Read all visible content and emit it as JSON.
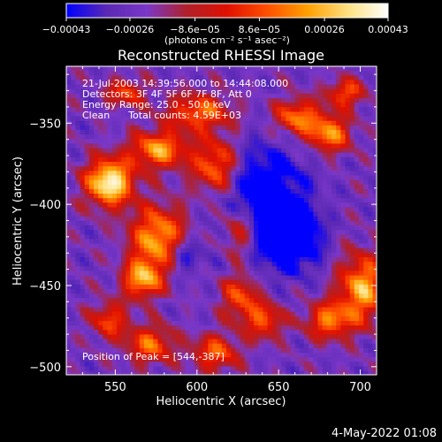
{
  "chart_data": {
    "type": "heatmap",
    "title": "Reconstructed RHESSI Image",
    "xlabel": "Heliocentric X (arcsec)",
    "ylabel": "Heliocentric Y (arcsec)",
    "xlim": [
      520,
      710
    ],
    "ylim": [
      -505,
      -315
    ],
    "x_ticks": [
      550,
      600,
      650,
      700
    ],
    "x_tick_labels": [
      "550",
      "600",
      "650",
      "700"
    ],
    "y_ticks": [
      -350,
      -400,
      -450,
      -500
    ],
    "y_tick_labels": [
      "−350",
      "−400",
      "−450",
      "−500"
    ],
    "colorbar": {
      "range": [
        -0.00043,
        0.00043
      ],
      "ticks": [
        -0.00043,
        -0.00026,
        -8.6e-05,
        8.6e-05,
        0.00026,
        0.00043
      ],
      "tick_labels": [
        "−0.00043",
        "−0.00026",
        "−8.6e−05",
        "8.6e−05",
        "0.00026",
        "0.00043"
      ],
      "unit_label": "(photons cm⁻² s⁻¹ asec⁻²)",
      "colormap": [
        "#0000ff",
        "#5a28b4",
        "#7a37c8",
        "#b0202a",
        "#e01000",
        "#ff5000",
        "#ffa000",
        "#ffe080",
        "#ffffff"
      ]
    },
    "annotations": [
      "21-Jul-2003 14:39:56.000 to 14:44:08.000",
      "Detectors: 3F 4F 5F 6F 7F 8F, Att 0",
      "Energy Range: 25.0 - 50.0 keV",
      "Clean      Total counts: 4.59E+03"
    ],
    "peak_label": "Position of Peak = [544,-387]",
    "peak": {
      "x": 544,
      "y": -387
    },
    "sources": [
      {
        "x": 545,
        "y": -385,
        "sx": 10,
        "sy": 10,
        "amp": 1.15
      },
      {
        "x": 575,
        "y": -365,
        "sx": 12,
        "sy": 8,
        "amp": 0.8
      },
      {
        "x": 575,
        "y": -420,
        "sx": 12,
        "sy": 14,
        "amp": 0.85
      },
      {
        "x": 565,
        "y": -445,
        "sx": 8,
        "sy": 8,
        "amp": 0.8
      },
      {
        "x": 610,
        "y": -375,
        "sx": 10,
        "sy": 12,
        "amp": 0.7
      },
      {
        "x": 600,
        "y": -342,
        "sx": 14,
        "sy": 8,
        "amp": 0.65
      },
      {
        "x": 625,
        "y": -415,
        "sx": 8,
        "sy": 12,
        "amp": 0.6
      },
      {
        "x": 660,
        "y": -345,
        "sx": 10,
        "sy": 8,
        "amp": 0.7
      },
      {
        "x": 680,
        "y": -355,
        "sx": 9,
        "sy": 8,
        "amp": 0.75
      },
      {
        "x": 690,
        "y": -330,
        "sx": 8,
        "sy": 6,
        "amp": 0.6
      },
      {
        "x": 700,
        "y": -450,
        "sx": 10,
        "sy": 14,
        "amp": 0.85
      },
      {
        "x": 680,
        "y": -470,
        "sx": 10,
        "sy": 8,
        "amp": 0.7
      },
      {
        "x": 640,
        "y": -470,
        "sx": 8,
        "sy": 8,
        "amp": 0.6
      },
      {
        "x": 570,
        "y": -485,
        "sx": 10,
        "sy": 8,
        "amp": 0.65
      },
      {
        "x": 610,
        "y": -490,
        "sx": 10,
        "sy": 8,
        "amp": 0.6
      },
      {
        "x": 545,
        "y": -470,
        "sx": 8,
        "sy": 8,
        "amp": 0.55
      },
      {
        "x": 625,
        "y": -455,
        "sx": 8,
        "sy": 10,
        "amp": 0.6
      },
      {
        "x": 555,
        "y": -330,
        "sx": 8,
        "sy": 6,
        "amp": 0.55
      }
    ],
    "negative_regions": [
      {
        "x": 640,
        "y": -400,
        "sx": 18,
        "sy": 25,
        "amp": 0.6
      },
      {
        "x": 660,
        "y": -420,
        "sx": 10,
        "sy": 12,
        "amp": 0.5
      },
      {
        "x": 590,
        "y": -430,
        "sx": 8,
        "sy": 8,
        "amp": 0.4
      }
    ]
  },
  "footer": {
    "timestamp": "4-May-2022 01:08"
  },
  "colors": {
    "background": "#000000",
    "text": "#ffffff",
    "frame": "#ffffff"
  }
}
